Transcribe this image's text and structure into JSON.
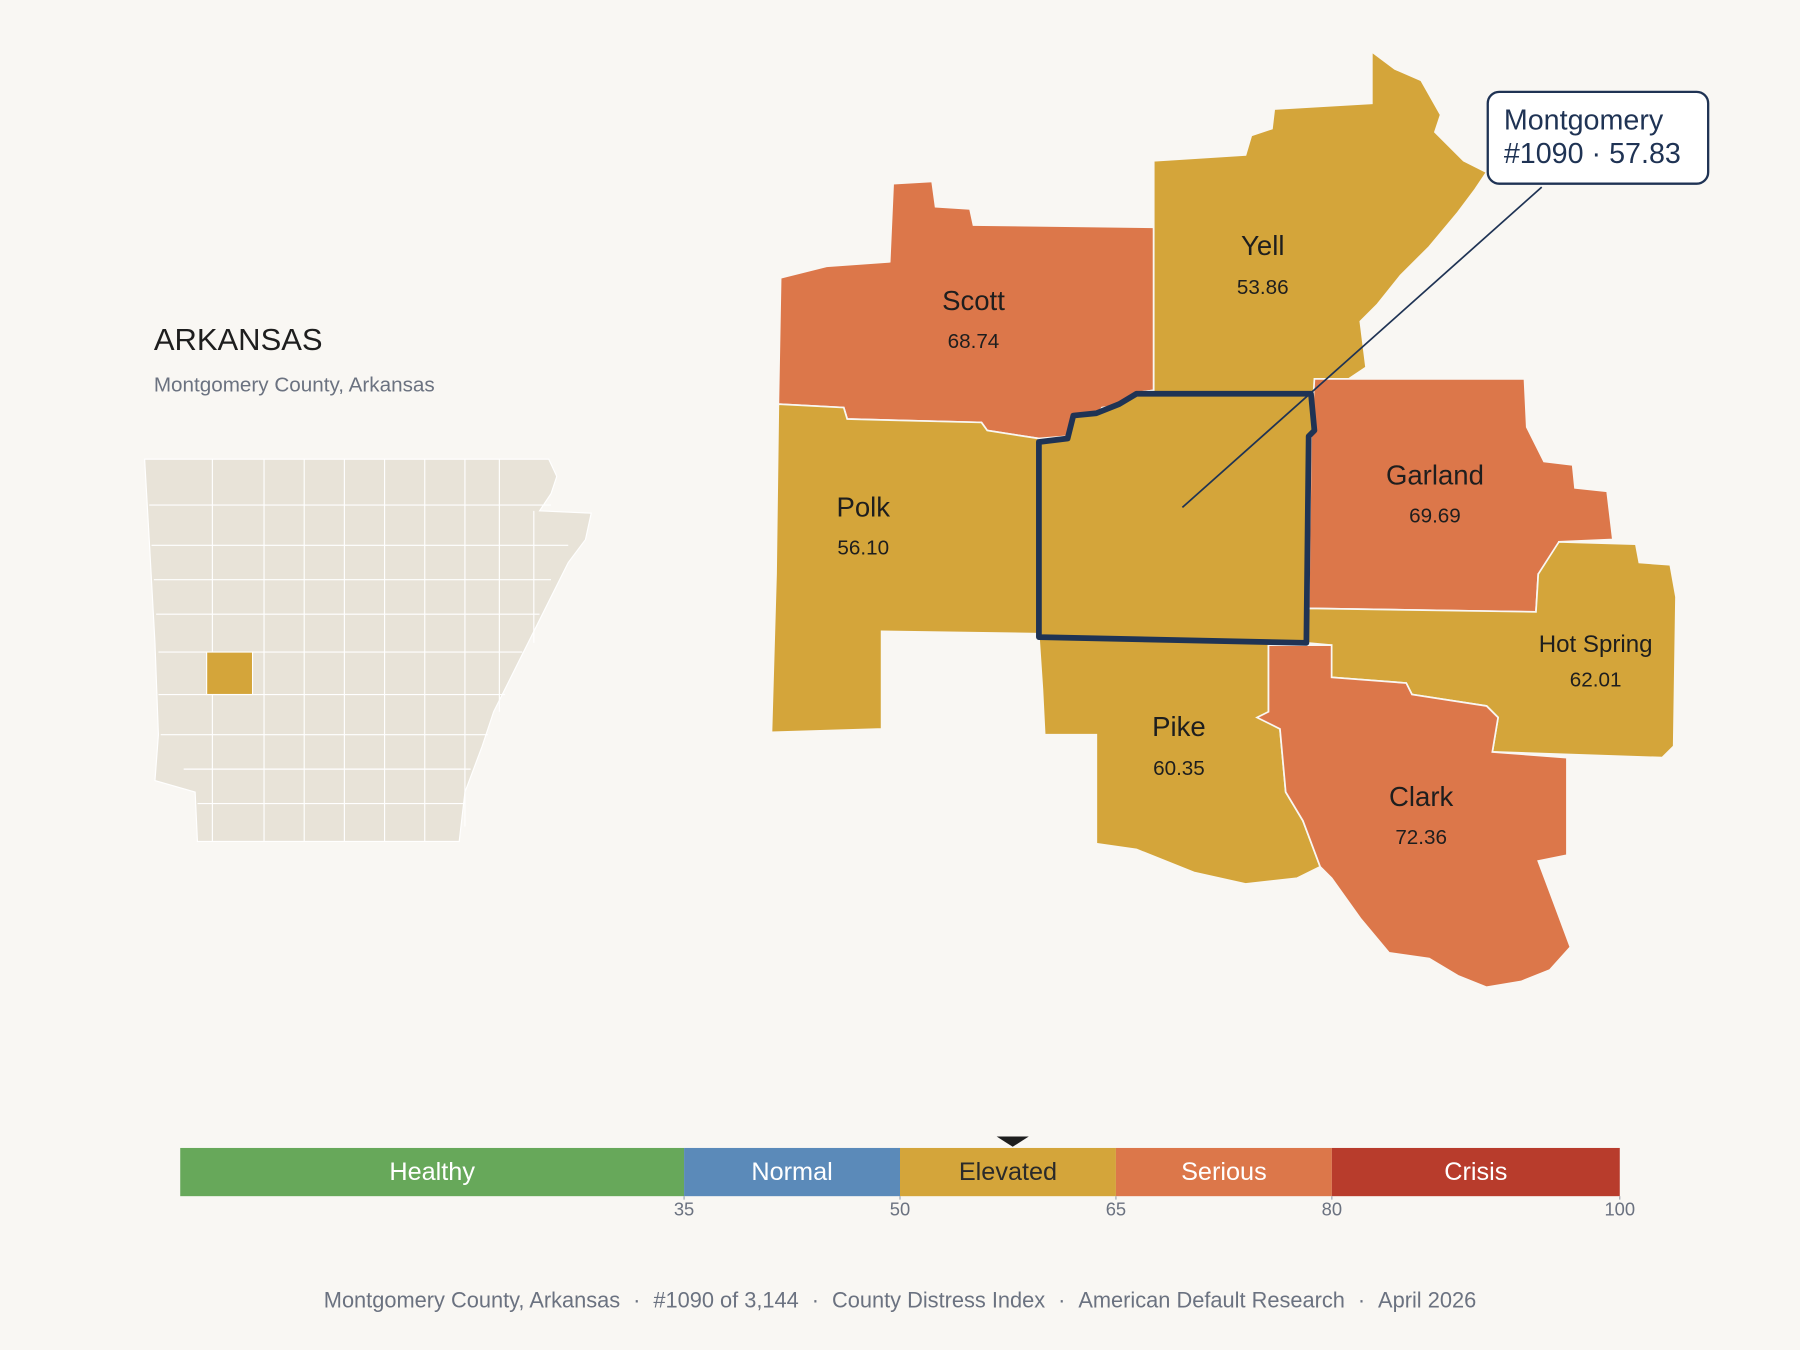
{
  "header": {
    "title": "ARKANSAS",
    "subtitle": "Montgomery County, Arkansas"
  },
  "counties": [
    {
      "name": "Scott",
      "value": 68.74
    },
    {
      "name": "Yell",
      "value": 53.86
    },
    {
      "name": "Polk",
      "value": 56.1,
      "value_label": "56.10"
    },
    {
      "name": "Montgomery",
      "value": 57.83
    },
    {
      "name": "Garland",
      "value": 69.69
    },
    {
      "name": "Hot Spring",
      "value": 62.01
    },
    {
      "name": "Pike",
      "value": 60.35
    },
    {
      "name": "Clark",
      "value": 72.36
    }
  ],
  "callout": {
    "name": "Montgomery",
    "detail": "#1090 · 57.83"
  },
  "legend": {
    "xlim": [
      0,
      100
    ],
    "xticks": [
      35,
      50,
      65,
      80,
      100
    ],
    "bands": [
      {
        "label": "Healthy",
        "color": "#67a85a",
        "text_color": "#ffffff"
      },
      {
        "label": "Normal",
        "color": "#5b8ab9",
        "text_color": "#ffffff"
      },
      {
        "label": "Elevated",
        "color": "#d4a53a",
        "text_color": "#2a2a2a"
      },
      {
        "label": "Serious",
        "color": "#dc774a",
        "text_color": "#ffffff"
      },
      {
        "label": "Crisis",
        "color": "#b83c2c",
        "text_color": "#ffffff"
      }
    ]
  },
  "footer": {
    "separator": "·",
    "items": [
      "Montgomery County, Arkansas",
      "#1090 of 3,144",
      "County Distress Index",
      "American Default Research",
      "April 2026"
    ]
  }
}
